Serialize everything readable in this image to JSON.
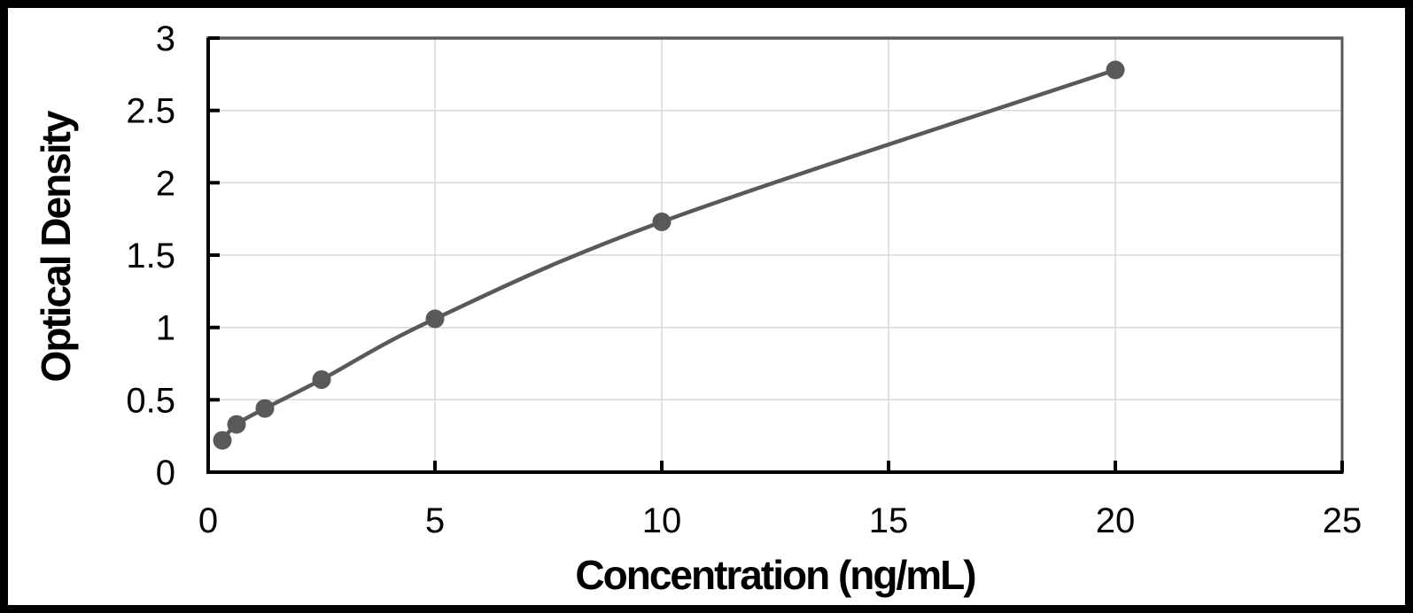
{
  "chart_data": {
    "type": "line",
    "subtype": "scatter_with_smooth_line_and_markers",
    "title": "",
    "xlabel": "Concentration (ng/mL)",
    "ylabel": "Optical Density",
    "x": [
      0.313,
      0.625,
      1.25,
      2.5,
      5,
      10,
      20
    ],
    "y": [
      0.22,
      0.33,
      0.44,
      0.64,
      1.06,
      1.73,
      2.78
    ],
    "xlim": [
      0,
      25
    ],
    "ylim": [
      0,
      3
    ],
    "x_ticks": [
      0,
      5,
      10,
      15,
      20,
      25
    ],
    "x_tick_labels": [
      "0",
      "5",
      "10",
      "15",
      "20",
      "25"
    ],
    "y_ticks": [
      0,
      0.5,
      1,
      1.5,
      2,
      2.5,
      3
    ],
    "y_tick_labels": [
      "0",
      "0.5",
      "1",
      "1.5",
      "2",
      "2.5",
      "3"
    ],
    "grid": true,
    "legend": "none",
    "colors": {
      "series": "#595959",
      "marker": "#595959",
      "gridline": "#D9D9D9",
      "axis": "#000000",
      "plot_border": "#595959",
      "background": "#FFFFFF",
      "frame": "#000000"
    }
  }
}
